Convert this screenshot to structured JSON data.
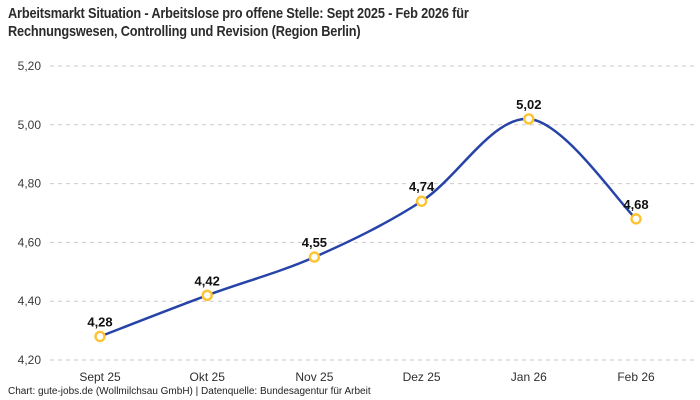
{
  "title": {
    "line1": "Arbeitsmarkt Situation - Arbeitslose pro offene Stelle: Sept 2025 - Feb 2026 für",
    "line2": "Rechnungswesen, Controlling und Revision (Region Berlin)"
  },
  "footer": "Chart: gute-jobs.de (Wollmilchsau GmbH) | Datenquelle: Bundesagentur für Arbeit",
  "colors": {
    "background": "#ffffff",
    "line": "#2643a8",
    "marker_stroke": "#fdc330",
    "marker_fill": "#ffffff",
    "grid": "#cbcbcb",
    "title_text": "#2b2b2b",
    "y_tick_text": "#3c3c3c",
    "x_tick_text": "#2e2e2e",
    "point_label_text": "#111111",
    "footer_text": "#222222"
  },
  "chart_data": {
    "type": "line",
    "title": "Arbeitsmarkt Situation - Arbeitslose pro offene Stelle: Sept 2025 - Feb 2026 für Rechnungswesen, Controlling und Revision (Region Berlin)",
    "categories": [
      "Sept 25",
      "Okt 25",
      "Nov 25",
      "Dez 25",
      "Jan 26",
      "Feb 26"
    ],
    "values": [
      4.28,
      4.42,
      4.55,
      4.74,
      5.02,
      4.68
    ],
    "point_labels": [
      "4,28",
      "4,42",
      "4,55",
      "4,74",
      "5,02",
      "4,68"
    ],
    "y_ticks": [
      {
        "value": 5.2,
        "label": "5,20"
      },
      {
        "value": 5.0,
        "label": "5,00"
      },
      {
        "value": 4.8,
        "label": "4,80"
      },
      {
        "value": 4.6,
        "label": "4,60"
      },
      {
        "value": 4.4,
        "label": "4,40"
      },
      {
        "value": 4.2,
        "label": "4,20"
      }
    ],
    "ylim": [
      4.2,
      5.2
    ],
    "xlabel": "",
    "ylabel": "",
    "grid": "horizontal-dashed",
    "legend": "none",
    "line_style": "smooth-spline",
    "marker": "open-circle"
  }
}
